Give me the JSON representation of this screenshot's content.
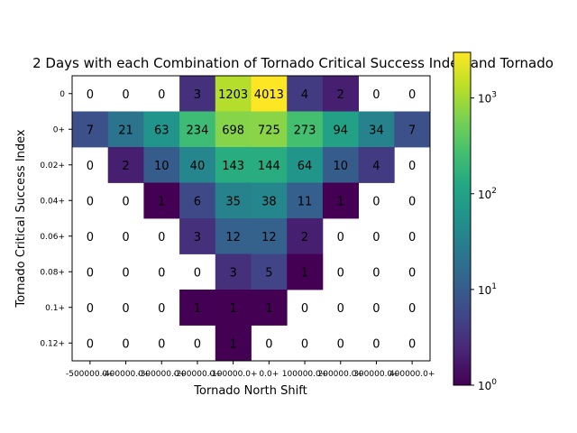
{
  "chart_data": {
    "type": "heatmap",
    "title": "2 Days with each Combination of Tornado Critical Success Index and Tornado",
    "xlabel": "Tornado North Shift",
    "ylabel": "Tornado Critical Success Index",
    "x_categories": [
      "-500000.0+",
      "-400000.0+",
      "-300000.0+",
      "-200000.0+",
      "-100000.0+",
      "0.0+",
      "100000.0+",
      "200000.0+",
      "300000.0+",
      "400000.0+"
    ],
    "y_categories": [
      "0",
      "0+",
      "0.02+",
      "0.04+",
      "0.06+",
      "0.08+",
      "0.1+",
      "0.12+"
    ],
    "values": [
      [
        0,
        0,
        0,
        3,
        1203,
        4013,
        4,
        2,
        0,
        0
      ],
      [
        7,
        21,
        63,
        234,
        698,
        725,
        273,
        94,
        34,
        7
      ],
      [
        0,
        2,
        10,
        40,
        143,
        144,
        64,
        10,
        4,
        0
      ],
      [
        0,
        0,
        1,
        6,
        35,
        38,
        11,
        1,
        0,
        0
      ],
      [
        0,
        0,
        0,
        3,
        12,
        12,
        2,
        0,
        0,
        0
      ],
      [
        0,
        0,
        0,
        0,
        3,
        5,
        1,
        0,
        0,
        0
      ],
      [
        0,
        0,
        0,
        1,
        1,
        1,
        0,
        0,
        0,
        0
      ],
      [
        0,
        0,
        0,
        0,
        1,
        0,
        0,
        0,
        0,
        0
      ]
    ],
    "colorscale": "viridis",
    "color_scale_type": "log",
    "color_range": [
      1,
      3000
    ],
    "colorbar_ticks": [
      {
        "base": "10",
        "exp": "0",
        "value": 1
      },
      {
        "base": "10",
        "exp": "1",
        "value": 10
      },
      {
        "base": "10",
        "exp": "2",
        "value": 100
      },
      {
        "base": "10",
        "exp": "3",
        "value": 1000
      }
    ]
  }
}
